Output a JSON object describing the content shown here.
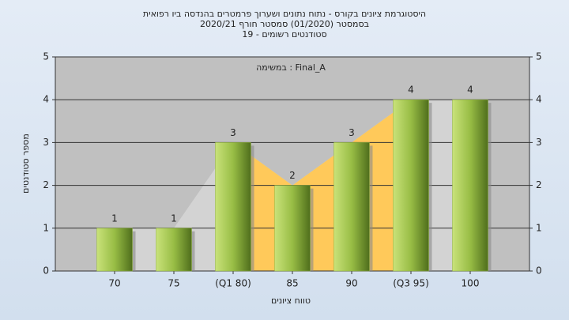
{
  "chart_data": {
    "type": "bar",
    "title": "היסטוגרמת ציונים בקורס - נתוח נתונים ושערוך פרמטרים בהנדסה ביו רפואית",
    "subtitle": "בסמסטר  (01/2020)  סמסטר חורף 2020/21",
    "subtitle2": "סטודנטים רשומים - 19",
    "annotation": "במשימה : Final_A",
    "x_label": "טווח ציונים",
    "y_label": "מספר סטודנטים",
    "categories": [
      "70",
      "75",
      "(Q1 80)",
      "85",
      "90",
      "(Q3 95)",
      "100"
    ],
    "values": [
      1,
      1,
      3,
      2,
      3,
      4,
      4
    ],
    "color": "#8fb33a",
    "area_color": "#d3d3d3",
    "band_color": "#ffc95a",
    "ylim": [
      0,
      5
    ],
    "yticks": [
      0,
      1,
      2,
      3,
      4,
      5
    ],
    "y2lim": [
      0,
      5
    ],
    "y2ticks": [
      0,
      1,
      2,
      3,
      4,
      5
    ],
    "grid": true
  }
}
